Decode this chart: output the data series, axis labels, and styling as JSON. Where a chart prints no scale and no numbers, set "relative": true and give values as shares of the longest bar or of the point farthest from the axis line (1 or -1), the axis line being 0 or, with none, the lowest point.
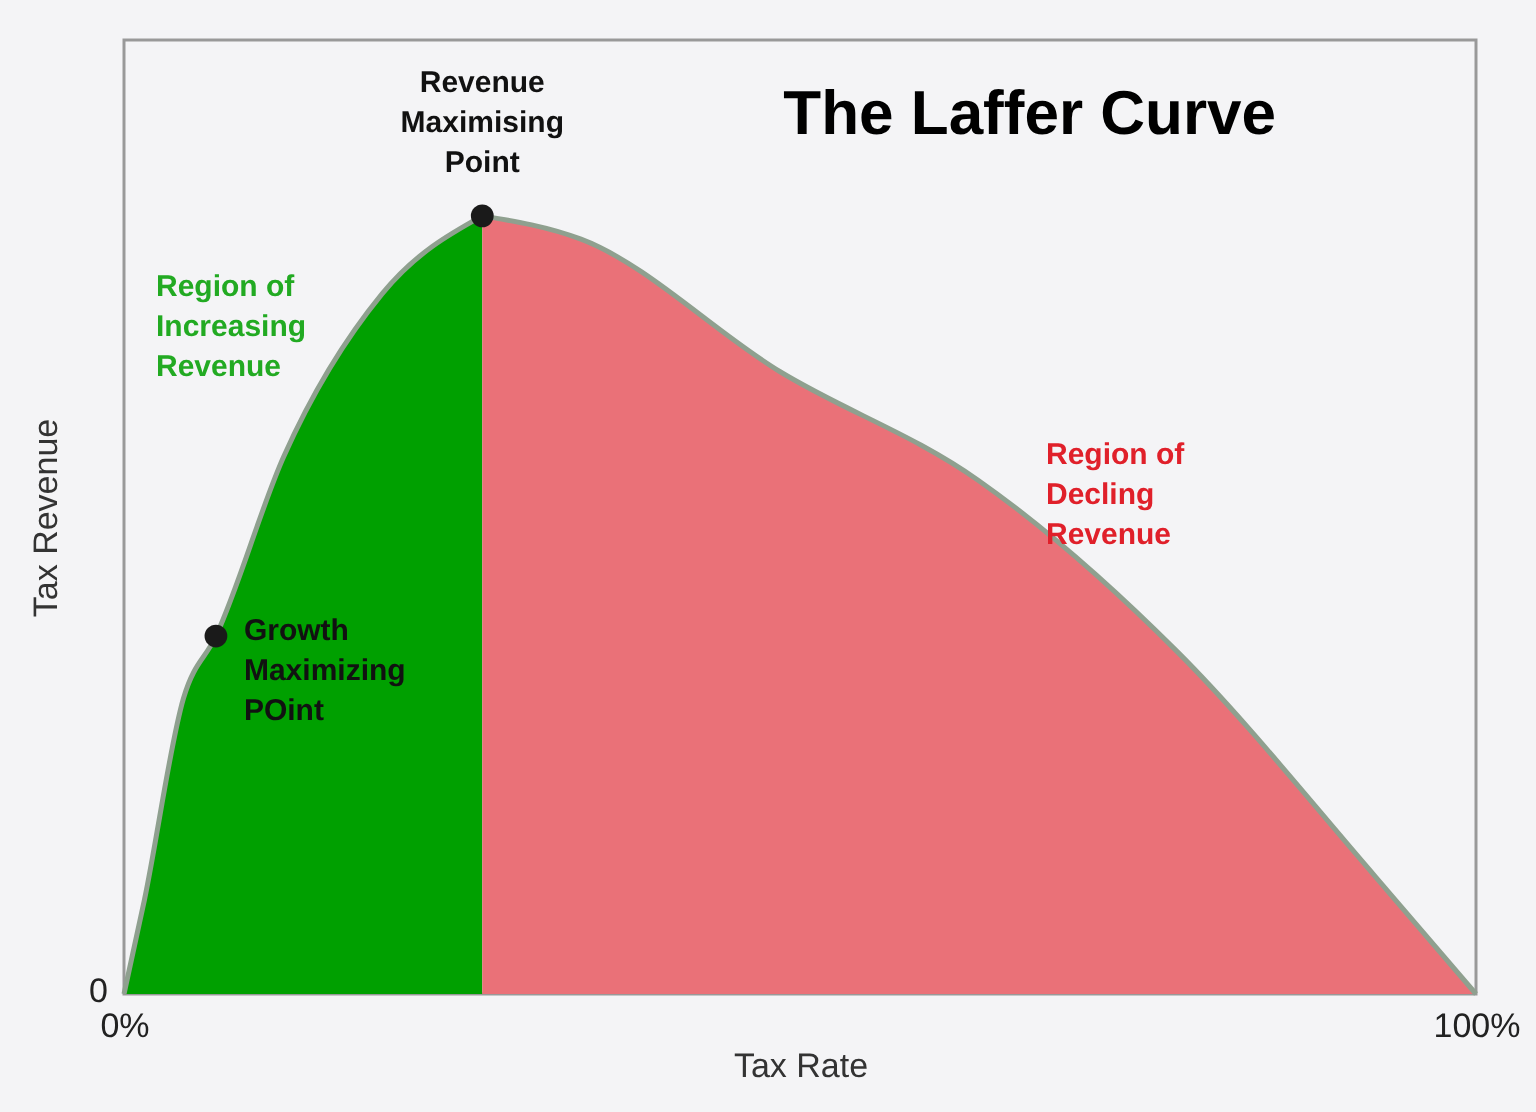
{
  "chart_data": {
    "type": "area",
    "title": "The Laffer Curve",
    "xlabel": "Tax Rate",
    "ylabel": "Tax Revenue",
    "relative": true,
    "xlim": [
      0,
      100
    ],
    "xticks": [
      {
        "value": 0,
        "label": "0%"
      },
      {
        "value": 100,
        "label": "100%"
      }
    ],
    "series": [
      {
        "color": "#00a000",
        "x": [
          0,
          1.5,
          4.4,
          6.8,
          11.8,
          19.1,
          26.5
        ],
        "values": [
          0,
          0.12,
          0.38,
          0.46,
          0.69,
          0.9,
          1
        ]
      },
      {
        "color": "#ea7178",
        "x": [
          26.5,
          33.8,
          48.5,
          63.2,
          77.9,
          92.6,
          100
        ],
        "values": [
          1,
          0.97,
          0.8,
          0.66,
          0.44,
          0.15,
          0
        ]
      },
      {
        "type": "scatter",
        "marker": "circle",
        "color": "#1a1a1a",
        "x": [
          6.8,
          26.5
        ],
        "values": [
          0.46,
          1
        ]
      }
    ],
    "annotations": [
      {
        "text": "Revenue Maximising Point",
        "x": 26.5,
        "y": 1
      },
      {
        "text": "Growth Maximizing POint",
        "x": 6.8,
        "y": 0.46
      },
      "Region of Increasing Revenue",
      "Region of Decling Revenue",
      "0"
    ]
  }
}
